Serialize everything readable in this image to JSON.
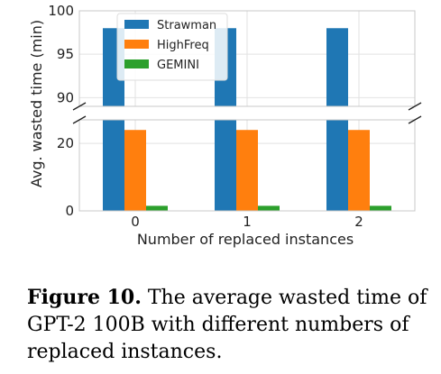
{
  "chart_data": {
    "type": "bar",
    "broken_y_axis": true,
    "categories": [
      "0",
      "1",
      "2"
    ],
    "series": [
      {
        "name": "Strawman",
        "values": [
          98,
          98,
          98
        ],
        "color": "#1f77b4"
      },
      {
        "name": "HighFreq",
        "values": [
          24,
          24,
          24
        ],
        "color": "#ff7f0e"
      },
      {
        "name": "GEMINI",
        "values": [
          1.5,
          1.5,
          1.5
        ],
        "color": "#2ca02c"
      }
    ],
    "xlabel": "Number of replaced instances",
    "ylabel": "Avg. wasted time (min)",
    "ylim_upper": [
      89,
      100
    ],
    "yticks_upper": [
      90,
      95,
      100
    ],
    "ylim_lower": [
      0,
      27
    ],
    "yticks_lower": [
      0,
      20
    ],
    "grid": true,
    "legend_position": "top-left"
  },
  "caption": {
    "label": "Figure 10.",
    "text": " The average wasted time of GPT-2 100B with different numbers of replaced instances."
  }
}
